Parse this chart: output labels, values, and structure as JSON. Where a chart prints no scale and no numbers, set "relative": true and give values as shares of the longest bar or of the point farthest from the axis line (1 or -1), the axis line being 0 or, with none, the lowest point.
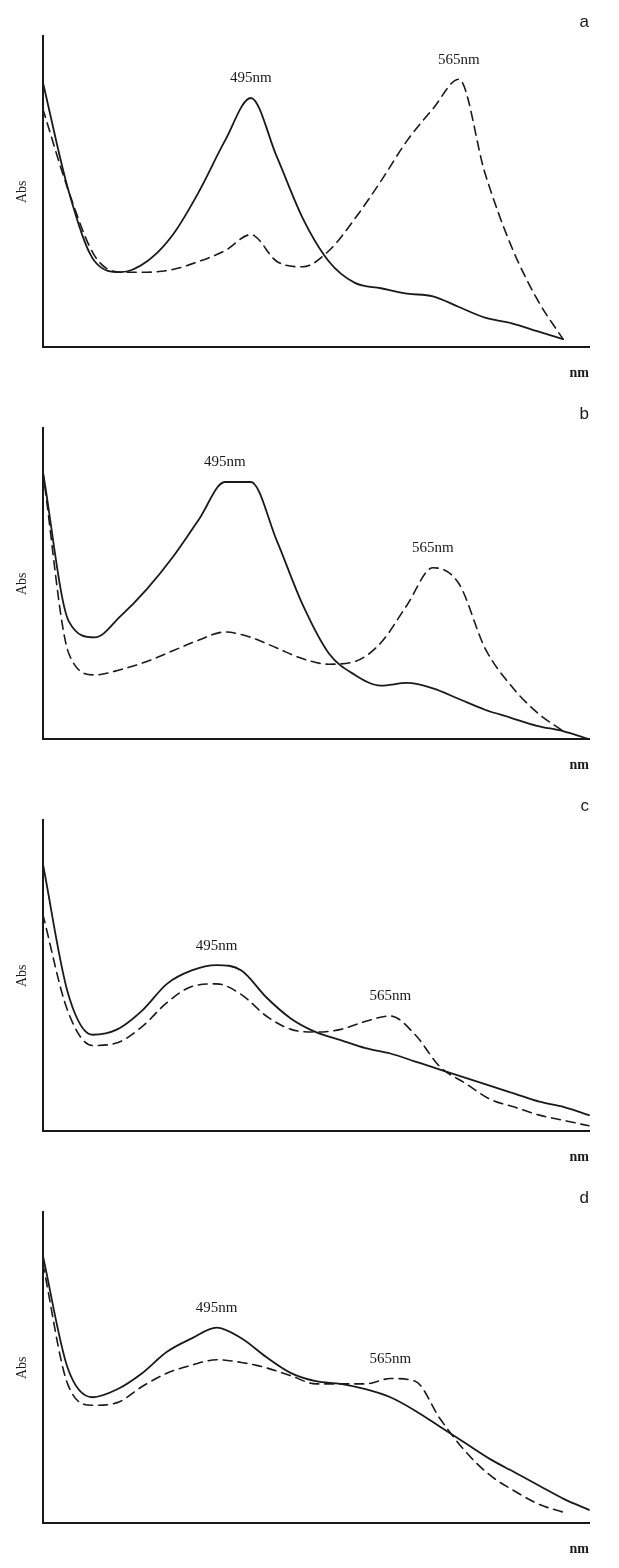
{
  "chart_data": [
    {
      "type": "line",
      "title": "a",
      "xlabel": "nm",
      "ylabel": "Abs",
      "relative": true,
      "legend": false,
      "grid": false,
      "tick_labels": false,
      "marker": "none",
      "annotations": [
        "495nm",
        "565nm"
      ],
      "categories": [
        null,
        null,
        null,
        null,
        null,
        null,
        null,
        null,
        null,
        null,
        null,
        null,
        null,
        null,
        null,
        null,
        null,
        null,
        null,
        null,
        null,
        null
      ],
      "series": [
        {
          "color": "#1a1a1a",
          "line_style": "solid",
          "values": [
            0.99,
            0.58,
            0.32,
            0.28,
            0.32,
            0.42,
            0.58,
            0.77,
            0.93,
            0.71,
            0.48,
            0.32,
            0.24,
            0.22,
            0.2,
            0.19,
            0.15,
            0.11,
            0.09,
            0.06,
            0.03,
            null
          ]
        },
        {
          "color": "#1a1a1a",
          "line_style": "dashed",
          "values": [
            0.89,
            0.58,
            0.34,
            0.28,
            0.28,
            0.29,
            0.32,
            0.36,
            0.42,
            0.32,
            0.3,
            0.36,
            0.48,
            0.62,
            0.77,
            0.89,
            1.0,
            0.65,
            0.38,
            0.18,
            0.03,
            null
          ]
        }
      ]
    },
    {
      "type": "line",
      "title": "b",
      "xlabel": "nm",
      "ylabel": "Abs",
      "relative": true,
      "legend": false,
      "grid": false,
      "tick_labels": false,
      "marker": "none",
      "annotations": [
        "495nm",
        "565nm"
      ],
      "categories": [
        null,
        null,
        null,
        null,
        null,
        null,
        null,
        null,
        null,
        null,
        null,
        null,
        null,
        null,
        null,
        null,
        null,
        null,
        null,
        null,
        null,
        null
      ],
      "series": [
        {
          "color": "#1a1a1a",
          "line_style": "solid",
          "values": [
            1.0,
            0.44,
            0.38,
            0.46,
            0.56,
            0.68,
            0.82,
            0.96,
            0.96,
            0.74,
            0.5,
            0.32,
            0.24,
            0.2,
            0.21,
            0.19,
            0.15,
            0.11,
            0.08,
            0.05,
            0.03,
            0.0
          ]
        },
        {
          "color": "#1a1a1a",
          "line_style": "dashed",
          "values": [
            1.0,
            0.32,
            0.24,
            0.26,
            0.29,
            0.33,
            0.37,
            0.4,
            0.38,
            0.34,
            0.3,
            0.28,
            0.29,
            0.36,
            0.5,
            0.64,
            0.58,
            0.34,
            0.2,
            0.1,
            0.03,
            null
          ]
        }
      ]
    },
    {
      "type": "line",
      "title": "c",
      "xlabel": "nm",
      "ylabel": "Abs",
      "relative": true,
      "legend": false,
      "grid": false,
      "tick_labels": false,
      "marker": "none",
      "annotations": [
        "495nm",
        "565nm"
      ],
      "categories": [
        null,
        null,
        null,
        null,
        null,
        null,
        null,
        null,
        null,
        null,
        null,
        null,
        null,
        null,
        null,
        null,
        null,
        null,
        null,
        null,
        null,
        null,
        null
      ],
      "series": [
        {
          "color": "#1a1a1a",
          "line_style": "solid",
          "values": [
            1.0,
            0.52,
            0.36,
            0.38,
            0.45,
            0.55,
            0.6,
            0.62,
            0.6,
            0.5,
            0.42,
            0.37,
            0.34,
            0.31,
            0.29,
            0.26,
            0.23,
            0.2,
            0.17,
            0.14,
            0.11,
            0.09,
            0.06
          ]
        },
        {
          "color": "#1a1a1a",
          "line_style": "dashed",
          "values": [
            0.81,
            0.45,
            0.32,
            0.33,
            0.39,
            0.48,
            0.54,
            0.55,
            0.51,
            0.43,
            0.38,
            0.37,
            0.38,
            0.41,
            0.43,
            0.36,
            0.24,
            0.18,
            0.12,
            0.09,
            0.06,
            0.04,
            0.02
          ]
        }
      ]
    },
    {
      "type": "line",
      "title": "d",
      "xlabel": "nm",
      "ylabel": "Abs",
      "relative": true,
      "legend": false,
      "grid": false,
      "tick_labels": false,
      "marker": "none",
      "annotations": [
        "495nm",
        "565nm"
      ],
      "categories": [
        null,
        null,
        null,
        null,
        null,
        null,
        null,
        null,
        null,
        null,
        null,
        null,
        null,
        null,
        null,
        null,
        null,
        null,
        null,
        null,
        null,
        null,
        null
      ],
      "series": [
        {
          "color": "#1a1a1a",
          "line_style": "solid",
          "values": [
            1.0,
            0.58,
            0.47,
            0.5,
            0.56,
            0.64,
            0.69,
            0.73,
            0.69,
            0.62,
            0.56,
            0.53,
            0.52,
            0.5,
            0.47,
            0.42,
            0.36,
            0.3,
            0.24,
            0.19,
            0.14,
            0.09,
            0.05
          ]
        },
        {
          "color": "#1a1a1a",
          "line_style": "dashed",
          "values": [
            0.97,
            0.52,
            0.44,
            0.45,
            0.51,
            0.56,
            0.59,
            0.61,
            0.6,
            0.58,
            0.55,
            0.52,
            0.52,
            0.52,
            0.54,
            0.53,
            0.39,
            0.27,
            0.18,
            0.12,
            0.07,
            0.04,
            null
          ]
        }
      ]
    }
  ]
}
